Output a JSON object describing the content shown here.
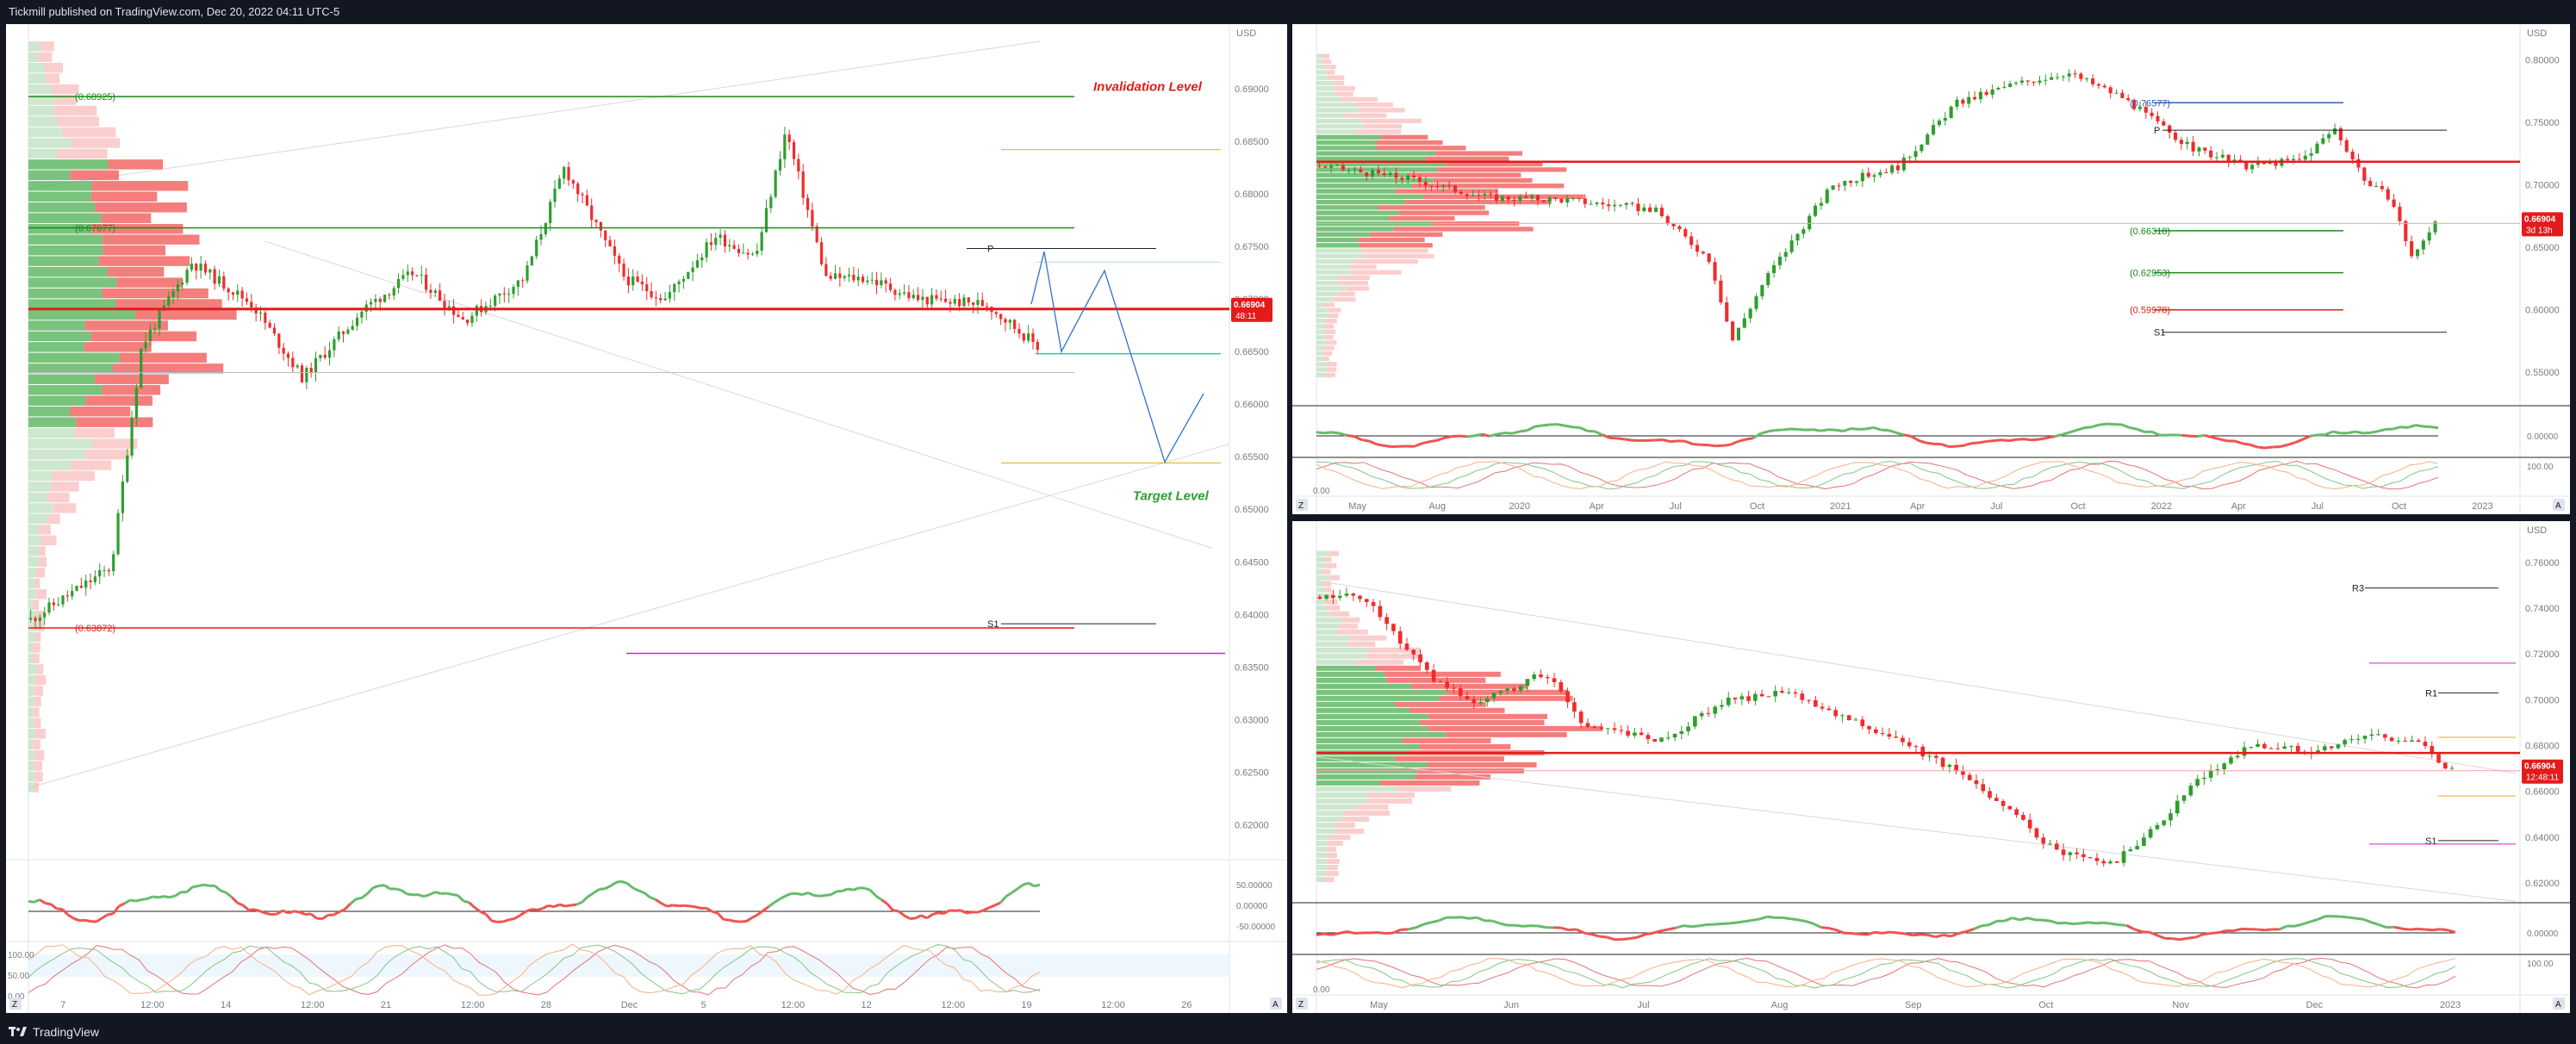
{
  "header": {
    "title": "Tickmill published on TradingView.com, Dec 20, 2022 04:11 UTC-5"
  },
  "footer": {
    "brand": "TradingView"
  },
  "icons": {
    "logo": "tradingview-logo-icon",
    "zoom": "magnifier-icon",
    "autoscale": "auto-scale-icon"
  },
  "colors": {
    "up": "#26a69a",
    "up_green": "#2e9e2e",
    "down": "#ef2c2c",
    "support": "#1b8a1b",
    "resistance": "#e31b1b",
    "projection": "#2f6fd6",
    "pivot": "#222222",
    "purple": "#d81bd8",
    "orange": "#f5a623"
  },
  "buttons": {
    "zoom": "Z",
    "auto": "A"
  },
  "chart_data": [
    {
      "id": "left",
      "type": "candlestick",
      "timeframe": "intraday",
      "price_axis_unit": "USD",
      "yticks": [
        "0.69000",
        "0.68500",
        "0.68000",
        "0.67500",
        "0.67000",
        "0.66500",
        "0.66000",
        "0.65500",
        "0.65000",
        "0.64500",
        "0.64000",
        "0.63500",
        "0.63000",
        "0.62500",
        "0.62000"
      ],
      "xticks": [
        "7",
        "12:00",
        "14",
        "12:00",
        "21",
        "12:00",
        "28",
        "Dec",
        "5",
        "12:00",
        "12",
        "12:00",
        "19",
        "12:00",
        "26"
      ],
      "ylim": [
        0.6175,
        0.6945
      ],
      "last_price": "0.66904",
      "countdown": "48:11",
      "levels": [
        {
          "label": "(0.68925)",
          "value": 0.68925,
          "color": "green"
        },
        {
          "label": "(0.67677)",
          "value": 0.67677,
          "color": "green"
        },
        {
          "label": "(0.63872)",
          "value": 0.63872,
          "color": "red"
        }
      ],
      "level_text": [
        {
          "text": "Invalidation Level",
          "color": "red"
        },
        {
          "text": "Target Level",
          "color": "green"
        },
        {
          "text": "P"
        },
        {
          "text": "S1"
        }
      ],
      "indicators": {
        "rsi_ticks": [
          "50.00000",
          "0.00000",
          "-50.00000"
        ],
        "stoch_ticks": [
          "100.00",
          "50.00",
          "0.00"
        ]
      }
    },
    {
      "id": "top-right",
      "type": "candlestick",
      "timeframe": "weekly",
      "price_axis_unit": "USD",
      "yticks": [
        "0.80000",
        "0.75000",
        "0.70000",
        "0.65000",
        "0.60000",
        "0.55000"
      ],
      "xticks": [
        "May",
        "Aug",
        "2020",
        "Apr",
        "Jul",
        "Oct",
        "2021",
        "Apr",
        "Jul",
        "Oct",
        "2022",
        "Apr",
        "Jul",
        "Oct",
        "2023"
      ],
      "ylim": [
        0.525,
        0.815
      ],
      "last_price": "0.66904",
      "countdown": "3d 13h",
      "levels": [
        {
          "label": "(0.76577)",
          "value": 0.76577,
          "color": "blue"
        },
        {
          "label": "(0.66318)",
          "value": 0.66318,
          "color": "green"
        },
        {
          "label": "(0.62953)",
          "value": 0.62953,
          "color": "green"
        },
        {
          "label": "(0.59978)",
          "value": 0.59978,
          "color": "red"
        }
      ],
      "level_text": [
        {
          "text": "P"
        },
        {
          "text": "S1"
        }
      ],
      "indicators": {
        "rsi_ticks": [
          "0.00000"
        ],
        "stoch_ticks": [
          "100.00",
          "0.00"
        ]
      }
    },
    {
      "id": "bottom-right",
      "type": "candlestick",
      "timeframe": "daily",
      "price_axis_unit": "USD",
      "yticks": [
        "0.76000",
        "0.74000",
        "0.72000",
        "0.70000",
        "0.68000",
        "0.66000",
        "0.64000",
        "0.62000"
      ],
      "xticks": [
        "May",
        "Jun",
        "Jul",
        "Aug",
        "Sep",
        "Oct",
        "Nov",
        "Dec",
        "2023"
      ],
      "ylim": [
        0.6125,
        0.7705
      ],
      "last_price": "0.66904",
      "countdown": "12:48:11",
      "level_text": [
        {
          "text": "R3"
        },
        {
          "text": "R1"
        },
        {
          "text": "S1"
        }
      ],
      "indicators": {
        "rsi_ticks": [
          "0.00000"
        ],
        "stoch_ticks": [
          "100.00",
          "0.00"
        ]
      }
    }
  ]
}
